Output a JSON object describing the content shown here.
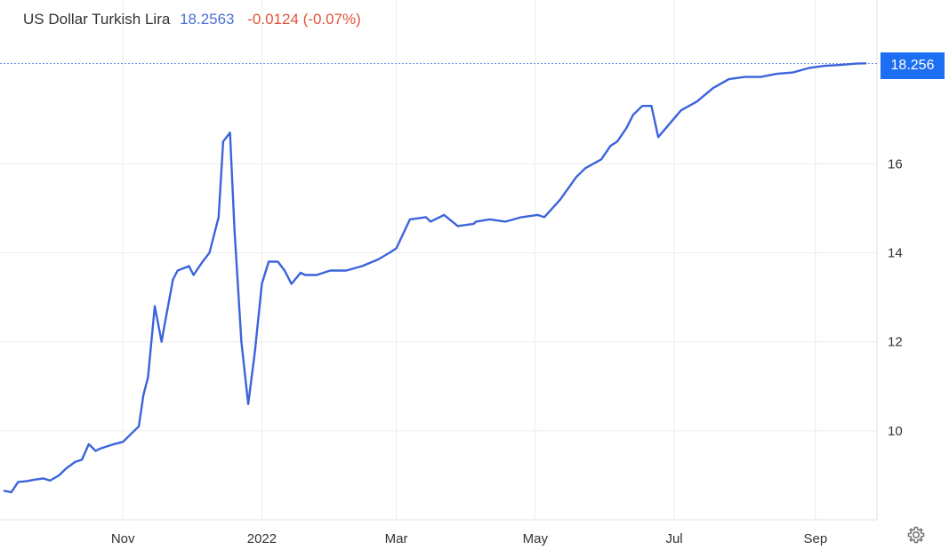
{
  "header": {
    "name": "US Dollar Turkish Lira",
    "price": "18.2563",
    "change": "-0.0124 (-0.07%)"
  },
  "current_price_label": "18.256",
  "colors": {
    "line": "#3b63dc",
    "price_tag": "#1c6ef2",
    "change_negative": "#e0533b",
    "price_text": "#4a6fd6"
  },
  "icons": {
    "settings": "gear-icon"
  },
  "chart_data": {
    "type": "line",
    "title": "US Dollar Turkish Lira",
    "xlabel": "",
    "ylabel": "",
    "x_ticks": [
      {
        "label": "Nov",
        "date": "2021-11-01"
      },
      {
        "label": "2022",
        "date": "2022-01-01"
      },
      {
        "label": "Mar",
        "date": "2022-03-01"
      },
      {
        "label": "May",
        "date": "2022-05-01"
      },
      {
        "label": "Jul",
        "date": "2022-07-01"
      },
      {
        "label": "Sep",
        "date": "2022-09-01"
      }
    ],
    "y_ticks": [
      10,
      12,
      14,
      16
    ],
    "xlim": [
      "2021-09-10",
      "2022-09-28"
    ],
    "ylim": [
      8.0,
      19.6
    ],
    "grid": true,
    "last_value": 18.256,
    "series": [
      {
        "x": [
          "2021-09-10",
          "2021-09-13",
          "2021-09-16",
          "2021-09-20",
          "2021-09-23",
          "2021-09-27",
          "2021-09-30",
          "2021-10-04",
          "2021-10-07",
          "2021-10-11",
          "2021-10-14",
          "2021-10-17",
          "2021-10-20",
          "2021-10-22",
          "2021-10-25",
          "2021-10-28",
          "2021-11-01",
          "2021-11-04",
          "2021-11-08",
          "2021-11-10",
          "2021-11-12",
          "2021-11-15",
          "2021-11-18",
          "2021-11-19",
          "2021-11-23",
          "2021-11-25",
          "2021-11-30",
          "2021-12-02",
          "2021-12-06",
          "2021-12-09",
          "2021-12-13",
          "2021-12-15",
          "2021-12-18",
          "2021-12-20",
          "2021-12-23",
          "2021-12-26",
          "2021-12-29",
          "2022-01-01",
          "2022-01-04",
          "2022-01-08",
          "2022-01-11",
          "2022-01-14",
          "2022-01-18",
          "2022-01-20",
          "2022-01-25",
          "2022-01-31",
          "2022-02-07",
          "2022-02-14",
          "2022-02-21",
          "2022-02-26",
          "2022-03-01",
          "2022-03-07",
          "2022-03-14",
          "2022-03-16",
          "2022-03-22",
          "2022-03-28",
          "2022-04-04",
          "2022-04-05",
          "2022-04-11",
          "2022-04-18",
          "2022-04-25",
          "2022-05-02",
          "2022-05-05",
          "2022-05-12",
          "2022-05-19",
          "2022-05-23",
          "2022-05-30",
          "2022-06-03",
          "2022-06-06",
          "2022-06-10",
          "2022-06-13",
          "2022-06-17",
          "2022-06-21",
          "2022-06-24",
          "2022-06-29",
          "2022-07-04",
          "2022-07-11",
          "2022-07-18",
          "2022-07-25",
          "2022-08-01",
          "2022-08-08",
          "2022-08-15",
          "2022-08-22",
          "2022-08-29",
          "2022-09-05",
          "2022-09-12",
          "2022-09-19",
          "2022-09-23"
        ],
        "values": [
          8.65,
          8.62,
          8.85,
          8.87,
          8.9,
          8.93,
          8.88,
          9.0,
          9.15,
          9.3,
          9.35,
          9.7,
          9.55,
          9.6,
          9.65,
          9.7,
          9.75,
          9.9,
          10.1,
          10.8,
          11.2,
          12.8,
          12.0,
          12.3,
          13.4,
          13.6,
          13.7,
          13.5,
          13.8,
          14.0,
          14.8,
          16.5,
          16.7,
          14.5,
          12.0,
          10.6,
          11.8,
          13.3,
          13.8,
          13.8,
          13.6,
          13.3,
          13.55,
          13.5,
          13.5,
          13.6,
          13.6,
          13.7,
          13.85,
          14.0,
          14.1,
          14.75,
          14.8,
          14.7,
          14.85,
          14.6,
          14.65,
          14.7,
          14.75,
          14.7,
          14.8,
          14.85,
          14.8,
          15.2,
          15.7,
          15.9,
          16.1,
          16.4,
          16.5,
          16.8,
          17.1,
          17.3,
          17.3,
          16.6,
          16.9,
          17.2,
          17.4,
          17.7,
          17.9,
          17.95,
          17.95,
          18.02,
          18.05,
          18.15,
          18.2,
          18.22,
          18.25,
          18.256
        ]
      }
    ]
  }
}
